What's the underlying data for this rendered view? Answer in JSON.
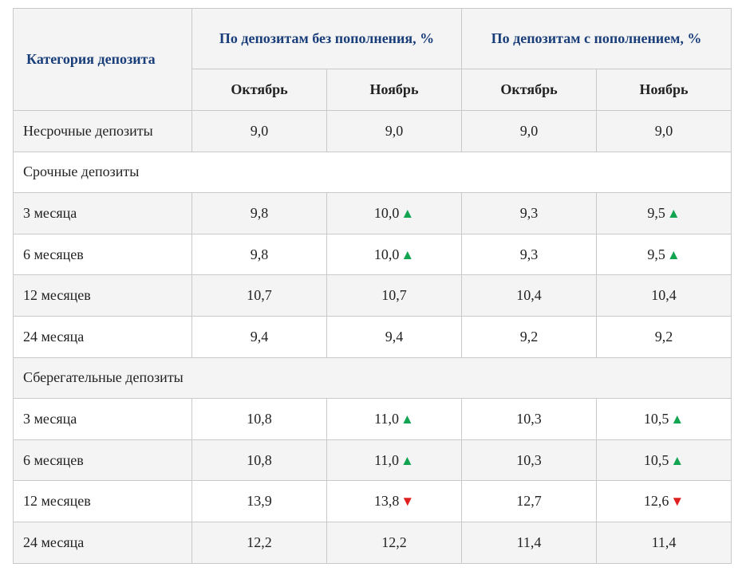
{
  "header": {
    "category_label": "Категория депозита",
    "group_no_topup": "По депозитам без пополнения, %",
    "group_topup": "По депозитам с пополнением, %",
    "october": "Октябрь",
    "november": "Ноябрь"
  },
  "icons": {
    "up": "▲",
    "down": "▼",
    "up_name": "triangle-up-icon",
    "down_name": "triangle-down-icon",
    "up_color": "#12a451",
    "down_color": "#e02020"
  },
  "rows": [
    {
      "type": "data",
      "label": "Несрочные депозиты",
      "c1": "9,0",
      "c2": "9,0",
      "c2_trend": "",
      "c3": "9,0",
      "c4": "9,0",
      "c4_trend": ""
    },
    {
      "type": "section",
      "label": "Срочные депозиты"
    },
    {
      "type": "data",
      "label": "3 месяца",
      "c1": "9,8",
      "c2": "10,0",
      "c2_trend": "up",
      "c3": "9,3",
      "c4": "9,5",
      "c4_trend": "up"
    },
    {
      "type": "data",
      "label": "6 месяцев",
      "c1": "9,8",
      "c2": "10,0",
      "c2_trend": "up",
      "c3": "9,3",
      "c4": "9,5",
      "c4_trend": "up"
    },
    {
      "type": "data",
      "label": "12 месяцев",
      "c1": "10,7",
      "c2": "10,7",
      "c2_trend": "",
      "c3": "10,4",
      "c4": "10,4",
      "c4_trend": ""
    },
    {
      "type": "data",
      "label": "24 месяца",
      "c1": "9,4",
      "c2": "9,4",
      "c2_trend": "",
      "c3": "9,2",
      "c4": "9,2",
      "c4_trend": ""
    },
    {
      "type": "section",
      "label": "Сберегательные депозиты"
    },
    {
      "type": "data",
      "label": "3 месяца",
      "c1": "10,8",
      "c2": "11,0",
      "c2_trend": "up",
      "c3": "10,3",
      "c4": "10,5",
      "c4_trend": "up"
    },
    {
      "type": "data",
      "label": "6 месяцев",
      "c1": "10,8",
      "c2": "11,0",
      "c2_trend": "up",
      "c3": "10,3",
      "c4": "10,5",
      "c4_trend": "up"
    },
    {
      "type": "data",
      "label": "12 месяцев",
      "c1": "13,9",
      "c2": "13,8",
      "c2_trend": "down",
      "c3": "12,7",
      "c4": "12,6",
      "c4_trend": "down"
    },
    {
      "type": "data",
      "label": "24 месяца",
      "c1": "12,2",
      "c2": "12,2",
      "c2_trend": "",
      "c3": "11,4",
      "c4": "11,4",
      "c4_trend": ""
    }
  ]
}
